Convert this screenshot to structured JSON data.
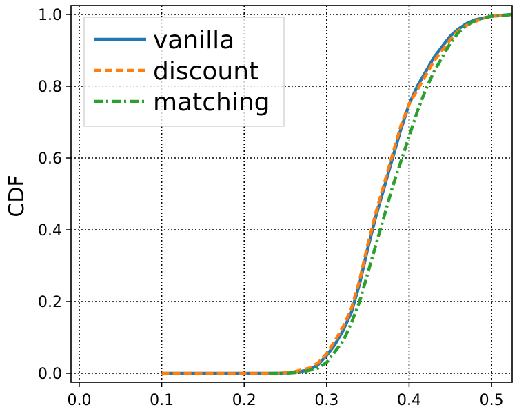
{
  "chart_data": {
    "type": "line",
    "title": "",
    "xlabel": "",
    "ylabel": "CDF",
    "xlim": [
      -0.01,
      0.525
    ],
    "ylim": [
      -0.025,
      1.025
    ],
    "x_ticks": [
      "0.0",
      "0.1",
      "0.2",
      "0.3",
      "0.4",
      "0.5"
    ],
    "y_ticks": [
      "0.0",
      "0.2",
      "0.4",
      "0.6",
      "0.8",
      "1.0"
    ],
    "grid": true,
    "grid_style": "dotted",
    "legend_position": "top-left",
    "series": [
      {
        "name": "vanilla",
        "color": "#1f77b4",
        "dash": "solid",
        "points": [
          [
            0.1,
            0.0
          ],
          [
            0.2,
            0.0
          ],
          [
            0.24,
            0.0
          ],
          [
            0.26,
            0.002
          ],
          [
            0.28,
            0.01
          ],
          [
            0.29,
            0.025
          ],
          [
            0.3,
            0.05
          ],
          [
            0.31,
            0.08
          ],
          [
            0.32,
            0.12
          ],
          [
            0.33,
            0.17
          ],
          [
            0.34,
            0.25
          ],
          [
            0.35,
            0.35
          ],
          [
            0.36,
            0.44
          ],
          [
            0.37,
            0.52
          ],
          [
            0.38,
            0.6
          ],
          [
            0.39,
            0.68
          ],
          [
            0.4,
            0.75
          ],
          [
            0.41,
            0.8
          ],
          [
            0.42,
            0.84
          ],
          [
            0.43,
            0.88
          ],
          [
            0.44,
            0.91
          ],
          [
            0.45,
            0.94
          ],
          [
            0.46,
            0.96
          ],
          [
            0.47,
            0.975
          ],
          [
            0.48,
            0.985
          ],
          [
            0.49,
            0.99
          ],
          [
            0.5,
            0.995
          ],
          [
            0.525,
            1.0
          ]
        ]
      },
      {
        "name": "discount",
        "color": "#ff7f0e",
        "dash": "dashed",
        "points": [
          [
            0.1,
            0.0
          ],
          [
            0.2,
            0.0
          ],
          [
            0.24,
            0.0
          ],
          [
            0.26,
            0.004
          ],
          [
            0.28,
            0.015
          ],
          [
            0.29,
            0.03
          ],
          [
            0.3,
            0.055
          ],
          [
            0.31,
            0.09
          ],
          [
            0.32,
            0.13
          ],
          [
            0.33,
            0.18
          ],
          [
            0.34,
            0.26
          ],
          [
            0.35,
            0.36
          ],
          [
            0.36,
            0.45
          ],
          [
            0.37,
            0.53
          ],
          [
            0.38,
            0.61
          ],
          [
            0.39,
            0.69
          ],
          [
            0.4,
            0.75
          ],
          [
            0.41,
            0.79
          ],
          [
            0.42,
            0.83
          ],
          [
            0.43,
            0.87
          ],
          [
            0.44,
            0.9
          ],
          [
            0.45,
            0.93
          ],
          [
            0.46,
            0.955
          ],
          [
            0.47,
            0.97
          ],
          [
            0.48,
            0.98
          ],
          [
            0.49,
            0.99
          ],
          [
            0.5,
            0.995
          ],
          [
            0.525,
            1.0
          ]
        ]
      },
      {
        "name": "matching",
        "color": "#2ca02c",
        "dash": "dashdot",
        "points": [
          [
            0.23,
            0.0
          ],
          [
            0.25,
            0.0
          ],
          [
            0.27,
            0.003
          ],
          [
            0.29,
            0.015
          ],
          [
            0.3,
            0.03
          ],
          [
            0.31,
            0.06
          ],
          [
            0.32,
            0.09
          ],
          [
            0.33,
            0.14
          ],
          [
            0.34,
            0.2
          ],
          [
            0.35,
            0.28
          ],
          [
            0.36,
            0.36
          ],
          [
            0.37,
            0.44
          ],
          [
            0.38,
            0.52
          ],
          [
            0.39,
            0.59
          ],
          [
            0.4,
            0.66
          ],
          [
            0.41,
            0.73
          ],
          [
            0.42,
            0.79
          ],
          [
            0.43,
            0.84
          ],
          [
            0.44,
            0.88
          ],
          [
            0.45,
            0.92
          ],
          [
            0.46,
            0.95
          ],
          [
            0.47,
            0.97
          ],
          [
            0.48,
            0.983
          ],
          [
            0.49,
            0.99
          ],
          [
            0.5,
            0.995
          ],
          [
            0.525,
            1.0
          ]
        ]
      }
    ]
  }
}
